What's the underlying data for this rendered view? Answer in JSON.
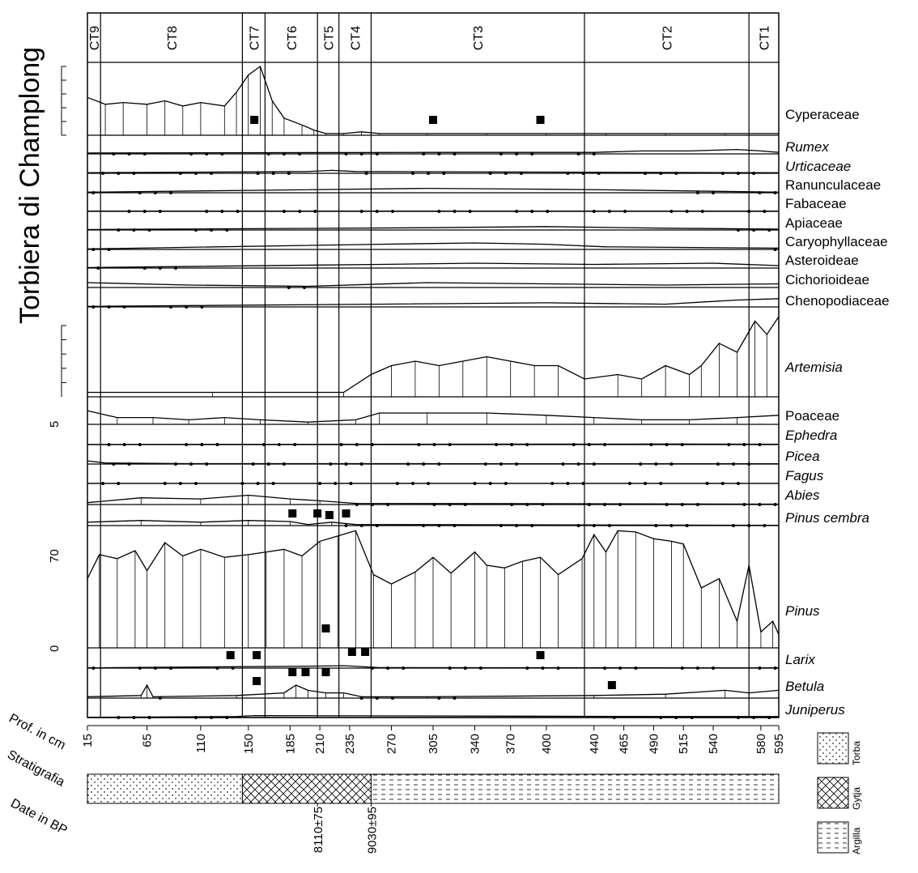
{
  "chart_data": {
    "type": "area",
    "title": "Torbiera di Champlong",
    "xlabel": "Prof. in cm",
    "stratigraphy_label": "Stratigrafia",
    "dates_label": "Date in BP",
    "x_ticks": [
      15,
      65,
      110,
      150,
      185,
      210,
      235,
      270,
      305,
      340,
      370,
      400,
      440,
      465,
      490,
      515,
      540,
      580,
      595
    ],
    "zones": [
      {
        "name": "CT9",
        "from": 15,
        "to": 26
      },
      {
        "name": "CT8",
        "from": 26,
        "to": 145
      },
      {
        "name": "CT7",
        "from": 145,
        "to": 164
      },
      {
        "name": "CT6",
        "from": 164,
        "to": 208
      },
      {
        "name": "CT5",
        "from": 208,
        "to": 226
      },
      {
        "name": "CT4",
        "from": 226,
        "to": 253
      },
      {
        "name": "CT3",
        "from": 253,
        "to": 432
      },
      {
        "name": "CT2",
        "from": 432,
        "to": 570
      },
      {
        "name": "CT1",
        "from": 570,
        "to": 595
      }
    ],
    "pinus_axis_labels": [
      "0",
      "70"
    ],
    "poaceae_axis_label": "5",
    "dates": [
      "8110±75",
      "9030±95"
    ],
    "legend": [
      "Torba",
      "Gytja",
      "Argilla"
    ],
    "stratigraphy": [
      {
        "type": "Torba",
        "from": 15,
        "to": 145
      },
      {
        "type": "Gytja",
        "from": 145,
        "to": 253
      },
      {
        "type": "Argilla",
        "from": 253,
        "to": 595
      }
    ],
    "series": [
      {
        "name": "Cyperaceae",
        "italic": false,
        "max": 40,
        "values": [
          [
            15,
            22
          ],
          [
            30,
            18
          ],
          [
            45,
            19
          ],
          [
            65,
            18
          ],
          [
            80,
            20
          ],
          [
            95,
            17
          ],
          [
            110,
            19
          ],
          [
            130,
            17
          ],
          [
            140,
            25
          ],
          [
            150,
            35
          ],
          [
            160,
            40
          ],
          [
            170,
            20
          ],
          [
            180,
            10
          ],
          [
            195,
            6
          ],
          [
            205,
            3
          ],
          [
            215,
            1
          ],
          [
            230,
            1
          ],
          [
            245,
            2
          ],
          [
            260,
            1
          ],
          [
            300,
            1
          ],
          [
            350,
            1
          ],
          [
            400,
            1
          ],
          [
            450,
            1
          ],
          [
            500,
            1
          ],
          [
            550,
            1
          ],
          [
            595,
            1
          ]
        ]
      },
      {
        "name": "Rumex",
        "italic": true,
        "max": 5,
        "values": [
          [
            15,
            0.3
          ],
          [
            300,
            0.5
          ],
          [
            440,
            0.5
          ],
          [
            480,
            1
          ],
          [
            520,
            1
          ],
          [
            560,
            1.5
          ],
          [
            580,
            1
          ],
          [
            595,
            0.5
          ]
        ]
      },
      {
        "name": "Urticaceae",
        "italic": true,
        "max": 5,
        "values": [
          [
            15,
            0.2
          ],
          [
            200,
            0.6
          ],
          [
            220,
            1
          ],
          [
            240,
            0.6
          ],
          [
            595,
            0.2
          ]
        ]
      },
      {
        "name": "Ranunculaceae",
        "italic": false,
        "max": 5,
        "values": [
          [
            15,
            0.2
          ],
          [
            150,
            0.8
          ],
          [
            300,
            1.5
          ],
          [
            400,
            1.2
          ],
          [
            450,
            1
          ],
          [
            595,
            0.2
          ]
        ]
      },
      {
        "name": "Fabaceae",
        "italic": false,
        "max": 5,
        "values": [
          [
            15,
            0.1
          ],
          [
            595,
            0.1
          ]
        ]
      },
      {
        "name": "Apiaceae",
        "italic": false,
        "max": 5,
        "values": [
          [
            15,
            0.2
          ],
          [
            300,
            1
          ],
          [
            400,
            1.5
          ],
          [
            500,
            0.8
          ],
          [
            595,
            0.4
          ]
        ]
      },
      {
        "name": "Caryophyllaceae",
        "italic": false,
        "max": 5,
        "values": [
          [
            15,
            0.2
          ],
          [
            260,
            2
          ],
          [
            340,
            2.5
          ],
          [
            400,
            2
          ],
          [
            450,
            1
          ],
          [
            595,
            0.5
          ]
        ]
      },
      {
        "name": "Asteroideae",
        "italic": false,
        "max": 5,
        "values": [
          [
            15,
            0.2
          ],
          [
            260,
            1.5
          ],
          [
            340,
            2
          ],
          [
            440,
            1.5
          ],
          [
            540,
            2
          ],
          [
            595,
            1
          ]
        ]
      },
      {
        "name": "Cichorioideae",
        "italic": false,
        "max": 5,
        "values": [
          [
            15,
            2
          ],
          [
            100,
            1
          ],
          [
            200,
            0.5
          ],
          [
            300,
            2
          ],
          [
            400,
            1.5
          ],
          [
            500,
            1
          ],
          [
            595,
            1.5
          ]
        ]
      },
      {
        "name": "Chenopodiaceae",
        "italic": false,
        "max": 5,
        "values": [
          [
            15,
            0.2
          ],
          [
            260,
            1
          ],
          [
            400,
            1.5
          ],
          [
            500,
            1
          ],
          [
            560,
            2.5
          ],
          [
            595,
            3
          ]
        ]
      },
      {
        "name": "Artemisia",
        "italic": true,
        "max": 20,
        "values": [
          [
            15,
            1
          ],
          [
            120,
            1
          ],
          [
            230,
            1
          ],
          [
            253,
            5
          ],
          [
            270,
            7
          ],
          [
            290,
            8
          ],
          [
            310,
            7
          ],
          [
            330,
            8
          ],
          [
            350,
            9
          ],
          [
            370,
            8
          ],
          [
            390,
            7
          ],
          [
            410,
            7
          ],
          [
            432,
            4
          ],
          [
            460,
            5
          ],
          [
            480,
            4
          ],
          [
            500,
            7
          ],
          [
            520,
            5
          ],
          [
            530,
            7
          ],
          [
            545,
            12
          ],
          [
            560,
            10
          ],
          [
            575,
            17
          ],
          [
            585,
            14
          ],
          [
            595,
            18
          ]
        ]
      },
      {
        "name": "Poaceae",
        "italic": false,
        "max": 10,
        "values": [
          [
            15,
            6
          ],
          [
            40,
            3
          ],
          [
            70,
            3
          ],
          [
            100,
            2
          ],
          [
            130,
            3
          ],
          [
            160,
            2
          ],
          [
            200,
            1
          ],
          [
            240,
            2
          ],
          [
            260,
            5
          ],
          [
            300,
            5
          ],
          [
            350,
            5
          ],
          [
            400,
            4
          ],
          [
            440,
            3
          ],
          [
            480,
            2
          ],
          [
            520,
            2
          ],
          [
            560,
            3
          ],
          [
            595,
            4
          ]
        ]
      },
      {
        "name": "Ephedra",
        "italic": true,
        "max": 5,
        "values": [
          [
            15,
            0.1
          ],
          [
            300,
            0.3
          ],
          [
            500,
            0.4
          ],
          [
            595,
            0.3
          ]
        ]
      },
      {
        "name": "Picea",
        "italic": true,
        "max": 5,
        "values": [
          [
            15,
            1.5
          ],
          [
            30,
            0.5
          ],
          [
            100,
            0.2
          ],
          [
            595,
            0.1
          ]
        ]
      },
      {
        "name": "Fagus",
        "italic": true,
        "max": 5,
        "values": [
          [
            15,
            0.1
          ],
          [
            595,
            0.1
          ]
        ]
      },
      {
        "name": "Abies",
        "italic": true,
        "max": 5,
        "values": [
          [
            15,
            0.5
          ],
          [
            60,
            1.8
          ],
          [
            110,
            1.5
          ],
          [
            150,
            2.5
          ],
          [
            185,
            1.5
          ],
          [
            210,
            1
          ],
          [
            240,
            0.3
          ],
          [
            595,
            0.1
          ]
        ]
      },
      {
        "name": "Pinus cembra",
        "italic": true,
        "max": 5,
        "values": [
          [
            15,
            1
          ],
          [
            60,
            1.5
          ],
          [
            110,
            1
          ],
          [
            150,
            1.5
          ],
          [
            185,
            1.2
          ],
          [
            200,
            0.3
          ],
          [
            220,
            1
          ],
          [
            240,
            0.3
          ],
          [
            595,
            0.1
          ]
        ]
      },
      {
        "name": "Pinus",
        "italic": true,
        "max": 90,
        "values": [
          [
            15,
            52
          ],
          [
            25,
            70
          ],
          [
            40,
            67
          ],
          [
            55,
            73
          ],
          [
            65,
            58
          ],
          [
            80,
            79
          ],
          [
            95,
            69
          ],
          [
            110,
            74
          ],
          [
            130,
            68
          ],
          [
            150,
            70
          ],
          [
            165,
            72
          ],
          [
            180,
            74
          ],
          [
            195,
            69
          ],
          [
            210,
            80
          ],
          [
            225,
            84
          ],
          [
            240,
            88
          ],
          [
            255,
            55
          ],
          [
            270,
            48
          ],
          [
            290,
            57
          ],
          [
            305,
            68
          ],
          [
            320,
            56
          ],
          [
            340,
            72
          ],
          [
            350,
            62
          ],
          [
            365,
            60
          ],
          [
            380,
            65
          ],
          [
            395,
            68
          ],
          [
            410,
            55
          ],
          [
            430,
            67
          ],
          [
            440,
            85
          ],
          [
            450,
            72
          ],
          [
            460,
            88
          ],
          [
            475,
            87
          ],
          [
            490,
            82
          ],
          [
            505,
            80
          ],
          [
            515,
            78
          ],
          [
            530,
            45
          ],
          [
            545,
            52
          ],
          [
            560,
            20
          ],
          [
            570,
            62
          ],
          [
            580,
            12
          ],
          [
            590,
            20
          ],
          [
            595,
            10
          ]
        ]
      },
      {
        "name": "Larix",
        "italic": true,
        "max": 5,
        "values": [
          [
            15,
            0.1
          ],
          [
            200,
            0.8
          ],
          [
            230,
            1
          ],
          [
            260,
            0.2
          ],
          [
            595,
            0.1
          ]
        ]
      },
      {
        "name": "Betula",
        "italic": true,
        "max": 10,
        "values": [
          [
            15,
            0.5
          ],
          [
            60,
            1
          ],
          [
            65,
            5
          ],
          [
            70,
            0.5
          ],
          [
            140,
            1
          ],
          [
            180,
            2
          ],
          [
            190,
            5
          ],
          [
            200,
            3
          ],
          [
            215,
            2
          ],
          [
            230,
            2
          ],
          [
            245,
            0.5
          ],
          [
            300,
            0.5
          ],
          [
            440,
            1
          ],
          [
            500,
            1.5
          ],
          [
            550,
            3
          ],
          [
            570,
            2
          ],
          [
            595,
            3
          ]
        ]
      },
      {
        "name": "Juniperus",
        "italic": true,
        "max": 5,
        "values": [
          [
            15,
            0.1
          ],
          [
            140,
            0.5
          ],
          [
            155,
            1
          ],
          [
            520,
            0.5
          ],
          [
            595,
            0.5
          ]
        ]
      }
    ]
  }
}
